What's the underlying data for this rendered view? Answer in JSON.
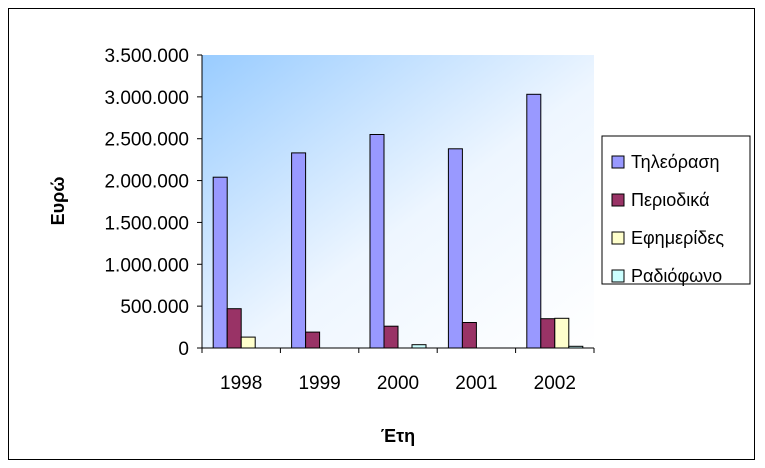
{
  "chart_data": {
    "type": "bar",
    "categories": [
      "1998",
      "1999",
      "2000",
      "2001",
      "2002"
    ],
    "series": [
      {
        "name": "Τηλεόραση",
        "color": "#9999ff",
        "values": [
          2040000,
          2330000,
          2550000,
          2380000,
          3030000
        ]
      },
      {
        "name": "Περιοδικά",
        "color": "#993366",
        "values": [
          470000,
          190000,
          260000,
          305000,
          350000
        ]
      },
      {
        "name": "Εφημερίδες",
        "color": "#ffffcc",
        "values": [
          130000,
          0,
          0,
          0,
          355000
        ]
      },
      {
        "name": "Ραδιόφωνο",
        "color": "#ccffff",
        "values": [
          0,
          0,
          40000,
          0,
          20000
        ]
      }
    ],
    "xlabel": "Έτη",
    "ylabel": "Ευρώ",
    "ylim": [
      0,
      3500000
    ],
    "yticks": [
      0,
      500000,
      1000000,
      1500000,
      2000000,
      2500000,
      3000000,
      3500000
    ],
    "ytick_labels": [
      "0",
      "500.000",
      "1.000.000",
      "1.500.000",
      "2.000.000",
      "2.500.000",
      "3.000.000",
      "3.500.000"
    ],
    "legend_position": "right",
    "plot_background": "gradient light blue",
    "grid": false
  }
}
